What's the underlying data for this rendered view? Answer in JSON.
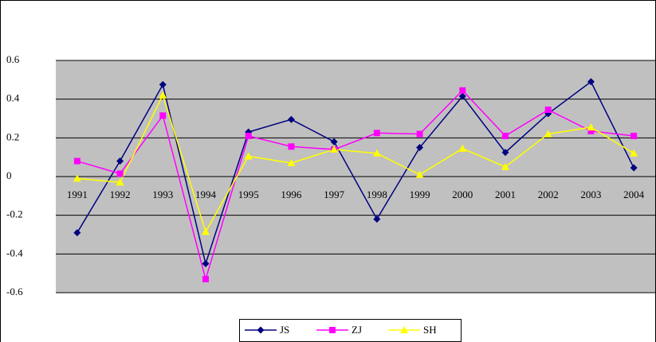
{
  "chart_data": {
    "type": "line",
    "categories": [
      "1991",
      "1992",
      "1993",
      "1994",
      "1995",
      "1996",
      "1997",
      "1998",
      "1999",
      "2000",
      "2001",
      "2002",
      "2003",
      "2004"
    ],
    "series": [
      {
        "name": "JS",
        "color": "#000080",
        "marker": "diamond",
        "values": [
          -0.29,
          0.08,
          0.475,
          -0.45,
          0.23,
          0.295,
          0.18,
          -0.22,
          0.15,
          0.415,
          0.125,
          0.325,
          0.49,
          0.045
        ]
      },
      {
        "name": "ZJ",
        "color": "#ff00ff",
        "marker": "square",
        "values": [
          0.08,
          0.015,
          0.315,
          -0.53,
          0.21,
          0.155,
          0.14,
          0.225,
          0.22,
          0.445,
          0.21,
          0.345,
          0.235,
          0.21
        ]
      },
      {
        "name": "SH",
        "color": "#ffff00",
        "marker": "triangle",
        "values": [
          -0.01,
          -0.03,
          0.42,
          -0.285,
          0.105,
          0.07,
          0.14,
          0.12,
          0.01,
          0.145,
          0.05,
          0.22,
          0.255,
          0.12
        ]
      }
    ],
    "ylim": [
      -0.6,
      0.6
    ],
    "yticks": [
      -0.6,
      -0.4,
      -0.2,
      0,
      0.2,
      0.4,
      0.6
    ],
    "grid": true
  }
}
